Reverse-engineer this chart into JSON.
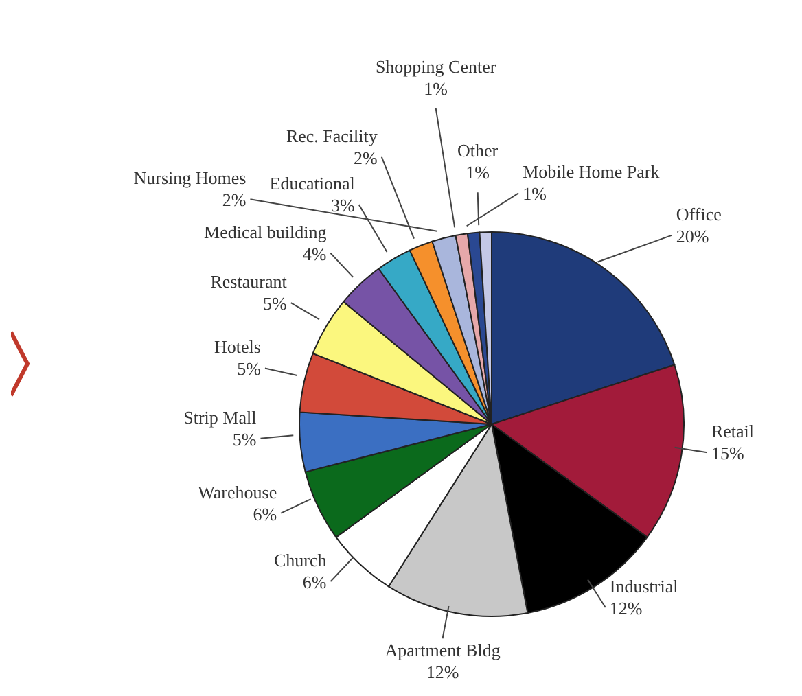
{
  "chart_data": {
    "type": "pie",
    "categories": [
      "Office",
      "Retail",
      "Industrial",
      "Apartment Bldg",
      "Church",
      "Warehouse",
      "Strip Mall",
      "Hotels",
      "Restaurant",
      "Medical building",
      "Educational",
      "Rec. Facility",
      "Nursing Homes",
      "Shopping Center",
      "Mobile Home Park",
      "Other"
    ],
    "values": [
      20,
      15,
      12,
      12,
      6,
      6,
      5,
      5,
      5,
      4,
      3,
      2,
      2,
      1,
      1,
      1
    ],
    "value_labels": [
      "20%",
      "15%",
      "12%",
      "12%",
      "6%",
      "6%",
      "5%",
      "5%",
      "5%",
      "4%",
      "3%",
      "2%",
      "2%",
      "1%",
      "1%",
      "1%"
    ],
    "colors": [
      "#1f3b7a",
      "#a21b3a",
      "#000000",
      "#c8c8c8",
      "#ffffff",
      "#0b6a1c",
      "#3b6fc2",
      "#d24a3a",
      "#fbf77e",
      "#7653a6",
      "#36a9c6",
      "#f5902c",
      "#a9b6dc",
      "#e6a8aa",
      "#2a4892",
      "#c4c8e6"
    ]
  }
}
